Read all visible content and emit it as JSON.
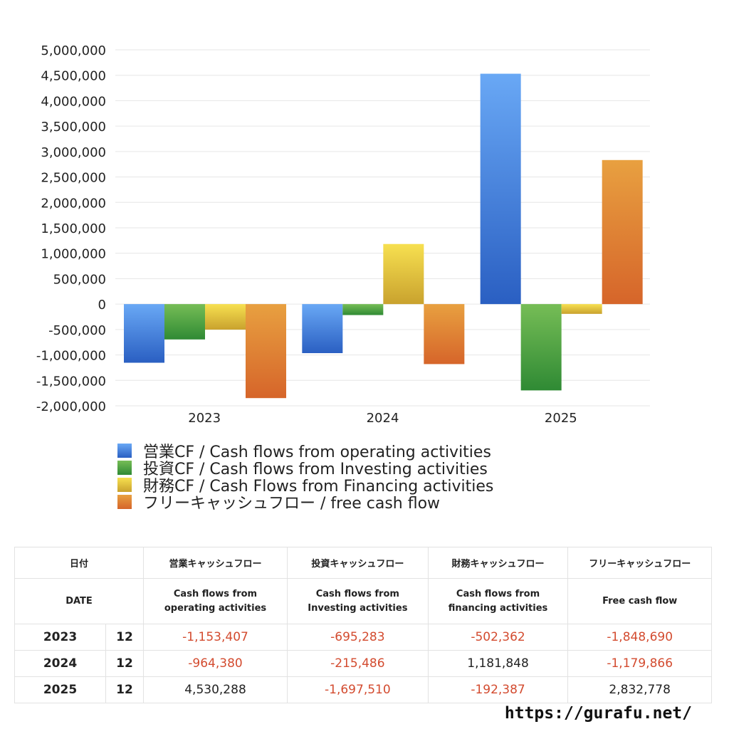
{
  "chart_data": {
    "type": "bar",
    "categories": [
      "2023",
      "2024",
      "2025"
    ],
    "ylim": [
      -2000000,
      5000000
    ],
    "yticks": [
      "5,000,000",
      "4,500,000",
      "4,000,000",
      "3,500,000",
      "3,000,000",
      "2,500,000",
      "2,000,000",
      "1,500,000",
      "1,000,000",
      "500,000",
      "0",
      "-500,000",
      "-1,000,000",
      "-1,500,000",
      "-2,000,000"
    ],
    "grid": true,
    "legend_position": "bottom",
    "series": [
      {
        "name": "営業CF / Cash flows from operating activities",
        "values": [
          -1153407,
          -964380,
          4530288
        ],
        "color_top": "#69a8f5",
        "color_bottom": "#2a5fc2"
      },
      {
        "name": "投資CF / Cash flows from Investing activities",
        "values": [
          -695283,
          -215486,
          -1697510
        ],
        "color_top": "#76bd56",
        "color_bottom": "#2f8a34"
      },
      {
        "name": "財務CF / Cash Flows from Financing activities",
        "values": [
          -502362,
          1181848,
          -192387
        ],
        "color_top": "#f7e050",
        "color_bottom": "#c9a22e"
      },
      {
        "name": "フリーキャッシュフロー / free cash flow",
        "values": [
          -1848690,
          -1179866,
          2832778
        ],
        "color_top": "#e8a040",
        "color_bottom": "#d6652a"
      }
    ]
  },
  "table": {
    "headers_jp": [
      "日付",
      "営業キャッシュフロー",
      "投資キャッシュフロー",
      "財務キャッシュフロー",
      "フリーキャッシュフロー"
    ],
    "headers_en": [
      "DATE",
      "Cash flows from\noperating activities",
      "Cash flows from\nInvesting activities",
      "Cash flows from\nfinancing activities",
      "Free cash flow"
    ],
    "rows": [
      {
        "year": "2023",
        "month": "12",
        "values": [
          "-1,153,407",
          "-695,283",
          "-502,362",
          "-1,848,690"
        ]
      },
      {
        "year": "2024",
        "month": "12",
        "values": [
          "-964,380",
          "-215,486",
          "1,181,848",
          "-1,179,866"
        ]
      },
      {
        "year": "2025",
        "month": "12",
        "values": [
          "4,530,288",
          "-1,697,510",
          "-192,387",
          "2,832,778"
        ]
      }
    ]
  },
  "footer": {
    "url": "https://gurafu.net/"
  },
  "colors": {
    "negative": "#d34b2f",
    "positive": "#222222"
  }
}
